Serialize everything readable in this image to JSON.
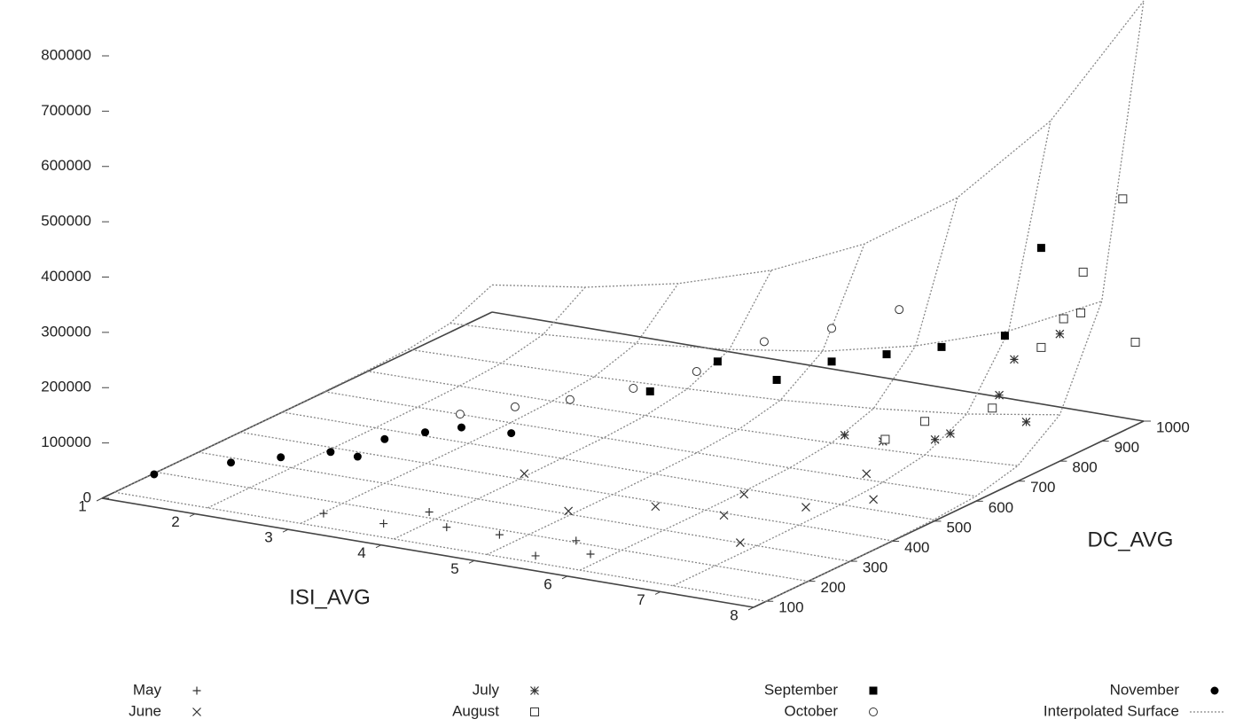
{
  "chart_data": {
    "type": "scatter3d",
    "x_label": "ISI_AVG",
    "y_label": "DC_AVG",
    "xlim": [
      1,
      8
    ],
    "xticks": [
      1,
      2,
      3,
      4,
      5,
      6,
      7,
      8
    ],
    "ylim": [
      70,
      1000
    ],
    "yticks": [
      100,
      200,
      300,
      400,
      500,
      600,
      700,
      800,
      900,
      1000
    ],
    "zlim": [
      0,
      800000
    ],
    "zticks": [
      0,
      100000,
      200000,
      300000,
      400000,
      500000,
      600000,
      700000,
      800000
    ],
    "series": [
      {
        "name": "May",
        "marker": "plus",
        "color": "#333333",
        "x": [
          3.2,
          3.8,
          4.5,
          5.0,
          5.5,
          6.0,
          4.2,
          5.8
        ],
        "y": [
          110,
          120,
          115,
          130,
          105,
          125,
          140,
          135
        ],
        "values": [
          20000,
          15000,
          30000,
          25000,
          10000,
          20000,
          40000,
          35000
        ]
      },
      {
        "name": "June",
        "marker": "cross",
        "color": "#333333",
        "x": [
          4.5,
          5.2,
          6.0,
          6.6,
          7.0,
          7.3,
          7.8,
          7.5,
          6.5
        ],
        "y": [
          300,
          250,
          280,
          310,
          260,
          350,
          400,
          450,
          380
        ],
        "values": [
          60000,
          30000,
          50000,
          40000,
          20000,
          60000,
          70000,
          90000,
          50000
        ]
      },
      {
        "name": "July",
        "marker": "asterisk",
        "color": "#333333",
        "x": [
          7.0,
          7.5,
          7.8,
          8.0,
          7.2,
          6.5,
          7.6,
          8.0
        ],
        "y": [
          600,
          650,
          700,
          720,
          680,
          620,
          780,
          800
        ],
        "values": [
          80000,
          90000,
          150000,
          100000,
          60000,
          70000,
          180000,
          230000
        ]
      },
      {
        "name": "August",
        "marker": "square-open",
        "color": "#333333",
        "x": [
          7.0,
          7.5,
          7.8,
          8.0,
          7.8,
          8.0,
          7.5,
          6.8,
          8.0
        ],
        "y": [
          700,
          750,
          800,
          850,
          900,
          950,
          920,
          650,
          980
        ],
        "values": [
          80000,
          100000,
          200000,
          250000,
          300000,
          420000,
          200000,
          60000,
          150000
        ]
      },
      {
        "name": "September",
        "marker": "square",
        "color": "#000000",
        "x": [
          5.0,
          5.5,
          6.0,
          6.5,
          7.0,
          7.5,
          4.5,
          7.8
        ],
        "y": [
          650,
          680,
          700,
          720,
          740,
          780,
          600,
          800
        ],
        "values": [
          150000,
          120000,
          160000,
          180000,
          200000,
          220000,
          100000,
          380000
        ]
      },
      {
        "name": "October",
        "marker": "circle-open",
        "color": "#333333",
        "x": [
          3.5,
          4.0,
          4.5,
          5.0,
          5.5,
          6.0,
          6.5,
          3.0
        ],
        "y": [
          500,
          520,
          560,
          600,
          650,
          700,
          750,
          480
        ],
        "values": [
          80000,
          100000,
          120000,
          150000,
          200000,
          220000,
          250000,
          60000
        ]
      },
      {
        "name": "November",
        "marker": "circle",
        "color": "#000000",
        "x": [
          1.2,
          1.8,
          2.2,
          2.6,
          3.0,
          3.3,
          3.6,
          4.0,
          2.8
        ],
        "y": [
          150,
          200,
          230,
          260,
          300,
          330,
          350,
          380,
          280
        ],
        "values": [
          20000,
          40000,
          50000,
          60000,
          80000,
          90000,
          100000,
          90000,
          50000
        ]
      }
    ],
    "surface": {
      "name": "Interpolated Surface",
      "color": "#888888",
      "x": [
        1,
        2,
        3,
        4,
        5,
        6,
        7,
        8
      ],
      "y": [
        100,
        200,
        300,
        400,
        500,
        600,
        700,
        800,
        900,
        1000
      ],
      "values": [
        [
          0,
          0,
          0,
          0,
          0,
          1000,
          2000,
          5000,
          16000,
          49000
        ],
        [
          0,
          0,
          0,
          0,
          0,
          1000,
          3000,
          8000,
          24000,
          73000
        ],
        [
          0,
          0,
          0,
          0,
          0,
          1000,
          4000,
          12000,
          36000,
          108000
        ],
        [
          0,
          0,
          0,
          0,
          1000,
          2000,
          6000,
          18000,
          53000,
          160000
        ],
        [
          0,
          0,
          0,
          0,
          1000,
          3000,
          9000,
          26000,
          78000,
          236000
        ],
        [
          0,
          0,
          0,
          0,
          1000,
          4000,
          13000,
          39000,
          116000,
          348000
        ],
        [
          0,
          0,
          0,
          1000,
          2000,
          6000,
          19000,
          57000,
          171000,
          515000
        ],
        [
          0,
          0,
          0,
          1000,
          3000,
          9000,
          28000,
          84000,
          253000,
          760000
        ]
      ]
    }
  }
}
